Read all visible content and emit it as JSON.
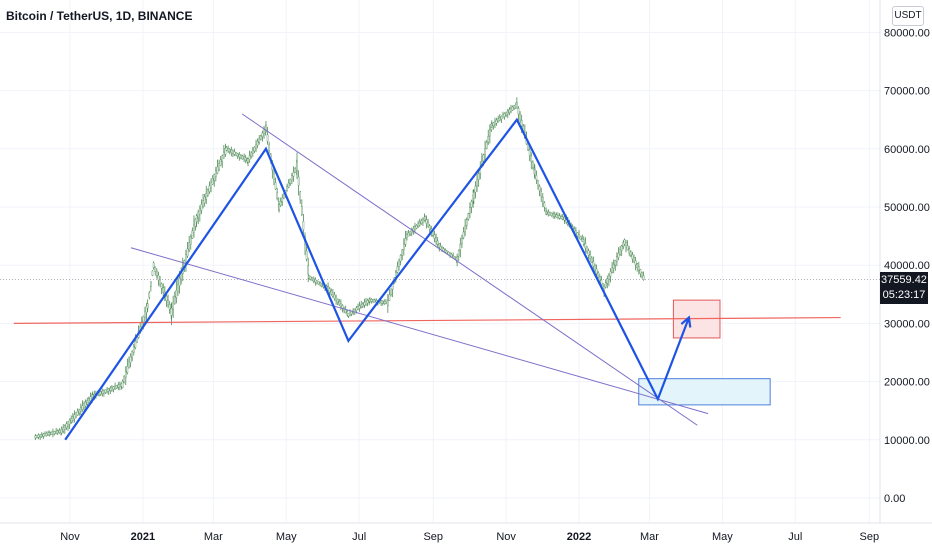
{
  "title": "Bitcoin / TetherUS, 1D, BINANCE",
  "currency": "USDT",
  "last_price": "37559.42",
  "countdown": "05:23:17",
  "colors": {
    "candle": "#4d8a55",
    "zigzag": "#1e53e5",
    "trendline": "#7e6fc9",
    "support": "#f0665f",
    "target_fill": "#fde4e4",
    "target_border": "#e05a5a",
    "buy_fill": "#e3f5fa",
    "buy_border": "#4d7fe0"
  },
  "chart_data": {
    "type": "line",
    "y_ticks": [
      "80000.00",
      "70000.00",
      "60000.00",
      "50000.00",
      "40000.00",
      "30000.00",
      "20000.00",
      "10000.00",
      "0.00"
    ],
    "x_ticks": [
      "Nov",
      "2021",
      "Mar",
      "May",
      "Jul",
      "Sep",
      "Nov",
      "2022",
      "Mar",
      "May",
      "Jul",
      "Sep"
    ],
    "ylim": [
      -3000,
      81000
    ],
    "grid": true,
    "price_path": [
      {
        "x": "2020-10-03",
        "y": 10500
      },
      {
        "x": "2020-10-25",
        "y": 11500
      },
      {
        "x": "2020-11-20",
        "y": 17500
      },
      {
        "x": "2020-12-15",
        "y": 19500
      },
      {
        "x": "2021-01-05",
        "y": 33000
      },
      {
        "x": "2021-01-10",
        "y": 40000
      },
      {
        "x": "2021-01-25",
        "y": 32000
      },
      {
        "x": "2021-02-15",
        "y": 48000
      },
      {
        "x": "2021-03-12",
        "y": 60000
      },
      {
        "x": "2021-03-30",
        "y": 58000
      },
      {
        "x": "2021-04-14",
        "y": 63500
      },
      {
        "x": "2021-04-25",
        "y": 50000
      },
      {
        "x": "2021-05-10",
        "y": 57000
      },
      {
        "x": "2021-05-20",
        "y": 38000
      },
      {
        "x": "2021-06-05",
        "y": 36000
      },
      {
        "x": "2021-06-22",
        "y": 31500
      },
      {
        "x": "2021-07-10",
        "y": 34000
      },
      {
        "x": "2021-07-25",
        "y": 33500
      },
      {
        "x": "2021-08-10",
        "y": 45000
      },
      {
        "x": "2021-08-25",
        "y": 48000
      },
      {
        "x": "2021-09-07",
        "y": 43000
      },
      {
        "x": "2021-09-21",
        "y": 41000
      },
      {
        "x": "2021-10-05",
        "y": 52000
      },
      {
        "x": "2021-10-20",
        "y": 64000
      },
      {
        "x": "2021-11-10",
        "y": 67500
      },
      {
        "x": "2021-11-25",
        "y": 56000
      },
      {
        "x": "2021-12-05",
        "y": 49000
      },
      {
        "x": "2021-12-20",
        "y": 48000
      },
      {
        "x": "2022-01-05",
        "y": 44000
      },
      {
        "x": "2022-01-22",
        "y": 36000
      },
      {
        "x": "2022-02-08",
        "y": 44000
      },
      {
        "x": "2022-02-25",
        "y": 37500
      }
    ],
    "zigzag_projection": [
      {
        "x": "2020-10-28",
        "y": 10000
      },
      {
        "x": "2021-04-14",
        "y": 60000
      },
      {
        "x": "2021-06-22",
        "y": 27000
      },
      {
        "x": "2021-11-10",
        "y": 65000
      },
      {
        "x": "2022-03-08",
        "y": 17000
      },
      {
        "x": "2022-04-03",
        "y": 31000
      }
    ],
    "trendlines": [
      {
        "from": {
          "x": "2020-12-22",
          "y": 43000
        },
        "to": {
          "x": "2022-04-19",
          "y": 14500
        }
      },
      {
        "from": {
          "x": "2021-03-25",
          "y": 66000
        },
        "to": {
          "x": "2022-04-10",
          "y": 12500
        }
      }
    ],
    "support_line": {
      "from": {
        "x": "2020-09-15",
        "y": 30000
      },
      "to": {
        "x": "2022-08-08",
        "y": 31000
      }
    },
    "target_zone": {
      "x0": "2022-03-21",
      "x1": "2022-04-29",
      "y0": 27500,
      "y1": 34000
    },
    "buy_zone": {
      "x0": "2022-02-20",
      "x1": "2022-06-10",
      "y0": 16000,
      "y1": 20500
    }
  }
}
